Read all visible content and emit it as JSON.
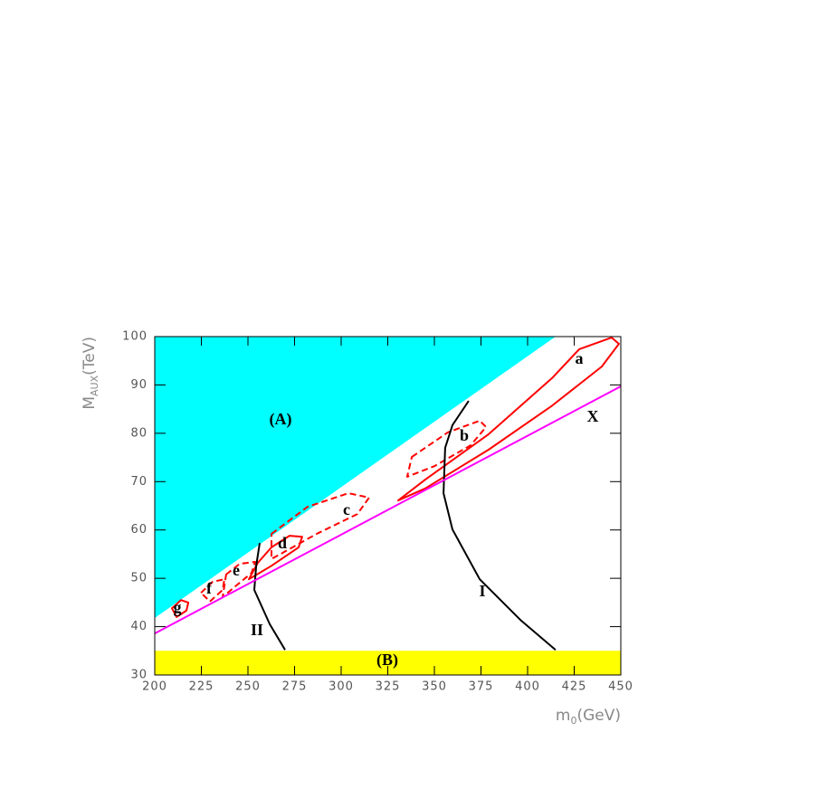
{
  "chart_data": {
    "type": "line",
    "xlabel": [
      "m",
      "0",
      "(GeV)"
    ],
    "ylabel": [
      "M",
      "AUX",
      "(TeV)"
    ],
    "xlim": [
      200,
      450
    ],
    "ylim": [
      30,
      100
    ],
    "xticks": [
      200,
      225,
      250,
      275,
      300,
      325,
      350,
      375,
      400,
      425,
      450
    ],
    "yticks": [
      30,
      40,
      50,
      60,
      70,
      80,
      90,
      100
    ],
    "regions": [
      {
        "name": "(A)",
        "color": "#00ffff",
        "x": [
          200,
          415,
          200
        ],
        "y": [
          41.8,
          100,
          100
        ]
      },
      {
        "name": "(B)",
        "color": "#ffff00",
        "x": [
          200,
          450,
          450,
          200
        ],
        "y": [
          30,
          30,
          35,
          35
        ]
      }
    ],
    "series": [
      {
        "name": "a",
        "color": "#ff0000",
        "dashed": false,
        "closed": true,
        "x": [
          445.1,
          449.0,
          439.8,
          413.1,
          379.1,
          345.1,
          330.6,
          345.1,
          379.1,
          413.1,
          427.7
        ],
        "y": [
          99.8,
          98.5,
          93.8,
          85.7,
          76.6,
          68.6,
          66.1,
          70.4,
          79.8,
          91.4,
          97.4
        ]
      },
      {
        "name": "b",
        "color": "#ff0000",
        "dashed": true,
        "closed": true,
        "x": [
          337.9,
          357.3,
          374.3,
          377.7,
          369.4,
          350.0,
          335.4
        ],
        "y": [
          75.1,
          80.2,
          82.6,
          81.3,
          77.5,
          73.2,
          71.0
        ]
      },
      {
        "name": "c",
        "color": "#ff0000",
        "dashed": true,
        "closed": true,
        "x": [
          262.6,
          282.0,
          303.9,
          315.0,
          308.7,
          286.9,
          262.6
        ],
        "y": [
          59.2,
          64.8,
          67.6,
          66.7,
          63.3,
          59.2,
          54.0
        ]
      },
      {
        "name": "d",
        "color": "#ff0000",
        "dashed": false,
        "closed": true,
        "x": [
          255.3,
          262.6,
          272.3,
          279.1,
          277.2,
          262.6,
          250.5
        ],
        "y": [
          53.2,
          56.4,
          58.8,
          58.6,
          56.4,
          52.6,
          49.8
        ]
      },
      {
        "name": "e",
        "color": "#ff0000",
        "dashed": true,
        "closed": true,
        "x": [
          238.3,
          245.6,
          253.9,
          251.9,
          242.2,
          236.4
        ],
        "y": [
          50.8,
          53.0,
          53.4,
          51.1,
          48.0,
          46.1
        ]
      },
      {
        "name": "f",
        "color": "#ff0000",
        "dashed": true,
        "closed": true,
        "x": [
          224.8,
          231.1,
          237.4,
          236.4,
          229.6
        ],
        "y": [
          47.0,
          49.3,
          49.8,
          47.6,
          45.2
        ]
      },
      {
        "name": "g",
        "color": "#ff0000",
        "dashed": false,
        "closed": true,
        "x": [
          209.2,
          214.1,
          218.0,
          217.0,
          211.7
        ],
        "y": [
          43.8,
          45.5,
          45.0,
          43.3,
          42.0
        ]
      },
      {
        "name": "I",
        "color": "#000000",
        "dashed": false,
        "closed": false,
        "x": [
          368.4,
          359.7,
          355.8,
          354.9,
          359.7,
          374.3,
          396.1,
          415.0
        ],
        "y": [
          86.7,
          81.7,
          77.0,
          67.6,
          60.1,
          49.8,
          41.4,
          35.2
        ]
      },
      {
        "name": "II",
        "color": "#000000",
        "dashed": false,
        "closed": false,
        "x": [
          256.3,
          254.4,
          253.4,
          261.7,
          269.9
        ],
        "y": [
          57.3,
          52.6,
          47.6,
          40.5,
          35.2
        ]
      },
      {
        "name": "X",
        "color": "#ff00ff",
        "dashed": false,
        "closed": false,
        "x": [
          200,
          450
        ],
        "y": [
          38.6,
          89.7
        ]
      }
    ]
  }
}
